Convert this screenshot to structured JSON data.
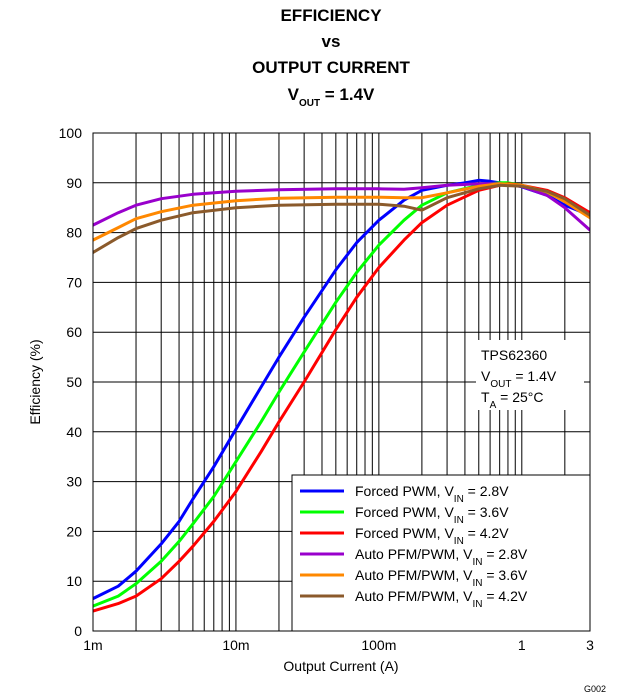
{
  "chart_data": {
    "type": "line",
    "title_lines": [
      {
        "text": "EFFICIENCY"
      },
      {
        "text": "vs"
      },
      {
        "text": "OUTPUT CURRENT"
      },
      {
        "text": "V",
        "sub": "OUT",
        "tail": " = 1.4V"
      }
    ],
    "xlabel": "Output Current (A)",
    "ylabel": "Efficiency (%)",
    "x_scale": "log",
    "xlim": [
      0.001,
      3
    ],
    "ylim": [
      0,
      100
    ],
    "grid": true,
    "legend_position": "bottom-right",
    "x_ticks": [
      {
        "value": 0.001,
        "label": "1m"
      },
      {
        "value": 0.01,
        "label": "10m"
      },
      {
        "value": 0.1,
        "label": "100m"
      },
      {
        "value": 1,
        "label": "1"
      },
      {
        "value": 3,
        "label": "3"
      }
    ],
    "y_ticks": [
      {
        "value": 0,
        "label": "0"
      },
      {
        "value": 10,
        "label": "10"
      },
      {
        "value": 20,
        "label": "20"
      },
      {
        "value": 30,
        "label": "30"
      },
      {
        "value": 40,
        "label": "40"
      },
      {
        "value": 50,
        "label": "50"
      },
      {
        "value": 60,
        "label": "60"
      },
      {
        "value": 70,
        "label": "70"
      },
      {
        "value": 80,
        "label": "80"
      },
      {
        "value": 90,
        "label": "90"
      },
      {
        "value": 100,
        "label": "100"
      }
    ],
    "annotation": {
      "line1": "TPS62360",
      "line2": {
        "main": "V",
        "sub": "OUT",
        "tail": " = 1.4V"
      },
      "line3": {
        "main": "T",
        "sub": "A",
        "tail": " = 25°C"
      }
    },
    "figure_code": "G002",
    "series": [
      {
        "name": "Forced PWM, V",
        "name_sub": "IN",
        "name_tail": " = 2.8V",
        "color": "#0000ff",
        "points": [
          [
            0.001,
            6.5
          ],
          [
            0.0015,
            9
          ],
          [
            0.002,
            12
          ],
          [
            0.003,
            17.5
          ],
          [
            0.004,
            22
          ],
          [
            0.005,
            26.5
          ],
          [
            0.007,
            33
          ],
          [
            0.01,
            40.5
          ],
          [
            0.015,
            49
          ],
          [
            0.02,
            55
          ],
          [
            0.03,
            63
          ],
          [
            0.05,
            72.5
          ],
          [
            0.07,
            78
          ],
          [
            0.1,
            82.5
          ],
          [
            0.15,
            86.5
          ],
          [
            0.2,
            88.5
          ],
          [
            0.3,
            89.5
          ],
          [
            0.4,
            90
          ],
          [
            0.5,
            90.5
          ],
          [
            0.6,
            90.3
          ],
          [
            0.7,
            90
          ],
          [
            0.8,
            89.8
          ],
          [
            1,
            89.2
          ],
          [
            1.5,
            87.5
          ],
          [
            2,
            85.5
          ],
          [
            3,
            83.5
          ]
        ]
      },
      {
        "name": "Forced PWM, V",
        "name_sub": "IN",
        "name_tail": " = 3.6V",
        "color": "#00ff00",
        "points": [
          [
            0.001,
            5
          ],
          [
            0.0015,
            7
          ],
          [
            0.002,
            9.5
          ],
          [
            0.003,
            14
          ],
          [
            0.004,
            18
          ],
          [
            0.005,
            21.5
          ],
          [
            0.007,
            27
          ],
          [
            0.01,
            34
          ],
          [
            0.015,
            42
          ],
          [
            0.02,
            48
          ],
          [
            0.03,
            56
          ],
          [
            0.05,
            66
          ],
          [
            0.07,
            72
          ],
          [
            0.1,
            77.5
          ],
          [
            0.15,
            82.5
          ],
          [
            0.2,
            85.5
          ],
          [
            0.3,
            88
          ],
          [
            0.5,
            89.5
          ],
          [
            0.7,
            90
          ],
          [
            0.8,
            90
          ],
          [
            1,
            89.5
          ],
          [
            1.5,
            88
          ],
          [
            2,
            86.5
          ],
          [
            3,
            84
          ]
        ]
      },
      {
        "name": "Forced PWM, V",
        "name_sub": "IN",
        "name_tail": " = 4.2V",
        "color": "#ff0000",
        "points": [
          [
            0.001,
            4
          ],
          [
            0.0015,
            5.5
          ],
          [
            0.002,
            7
          ],
          [
            0.003,
            10.5
          ],
          [
            0.004,
            14
          ],
          [
            0.005,
            17
          ],
          [
            0.007,
            22
          ],
          [
            0.01,
            28
          ],
          [
            0.015,
            36
          ],
          [
            0.02,
            42
          ],
          [
            0.03,
            50
          ],
          [
            0.05,
            60.5
          ],
          [
            0.07,
            67
          ],
          [
            0.1,
            73
          ],
          [
            0.15,
            78.5
          ],
          [
            0.2,
            82
          ],
          [
            0.3,
            85.5
          ],
          [
            0.5,
            88.5
          ],
          [
            0.7,
            89.5
          ],
          [
            0.8,
            89.8
          ],
          [
            1,
            89.5
          ],
          [
            1.5,
            88.5
          ],
          [
            2,
            87
          ],
          [
            3,
            84
          ]
        ]
      },
      {
        "name": "Auto PFM/PWM, V",
        "name_sub": "IN",
        "name_tail": " = 2.8V",
        "color": "#9900cc",
        "points": [
          [
            0.001,
            81.5
          ],
          [
            0.0015,
            84
          ],
          [
            0.002,
            85.5
          ],
          [
            0.003,
            86.8
          ],
          [
            0.005,
            87.7
          ],
          [
            0.01,
            88.3
          ],
          [
            0.02,
            88.6
          ],
          [
            0.05,
            88.8
          ],
          [
            0.1,
            88.8
          ],
          [
            0.15,
            88.7
          ],
          [
            0.2,
            89
          ],
          [
            0.3,
            89.5
          ],
          [
            0.5,
            89.8
          ],
          [
            0.7,
            89.8
          ],
          [
            1,
            89.3
          ],
          [
            1.5,
            87.5
          ],
          [
            2,
            85
          ],
          [
            3,
            80.5
          ]
        ]
      },
      {
        "name": "Auto PFM/PWM, V",
        "name_sub": "IN",
        "name_tail": " = 3.6V",
        "color": "#ff8800",
        "points": [
          [
            0.001,
            78.5
          ],
          [
            0.0015,
            81
          ],
          [
            0.002,
            82.8
          ],
          [
            0.003,
            84.2
          ],
          [
            0.005,
            85.5
          ],
          [
            0.01,
            86.4
          ],
          [
            0.02,
            86.9
          ],
          [
            0.05,
            87.1
          ],
          [
            0.1,
            87.1
          ],
          [
            0.15,
            87
          ],
          [
            0.2,
            87
          ],
          [
            0.3,
            88
          ],
          [
            0.5,
            89.3
          ],
          [
            0.7,
            89.8
          ],
          [
            1,
            89.5
          ],
          [
            1.5,
            88.2
          ],
          [
            2,
            86.2
          ],
          [
            3,
            83
          ]
        ]
      },
      {
        "name": "Auto PFM/PWM, V",
        "name_sub": "IN",
        "name_tail": " = 4.2V",
        "color": "#8b5a2b",
        "points": [
          [
            0.001,
            76
          ],
          [
            0.0015,
            79
          ],
          [
            0.002,
            80.8
          ],
          [
            0.003,
            82.5
          ],
          [
            0.005,
            84
          ],
          [
            0.01,
            85
          ],
          [
            0.02,
            85.5
          ],
          [
            0.05,
            85.7
          ],
          [
            0.1,
            85.7
          ],
          [
            0.15,
            85.3
          ],
          [
            0.2,
            84.5
          ],
          [
            0.3,
            87
          ],
          [
            0.5,
            88.8
          ],
          [
            0.7,
            89.5
          ],
          [
            1,
            89.3
          ],
          [
            1.5,
            88.3
          ],
          [
            2,
            86.8
          ],
          [
            3,
            83.5
          ]
        ]
      }
    ]
  }
}
